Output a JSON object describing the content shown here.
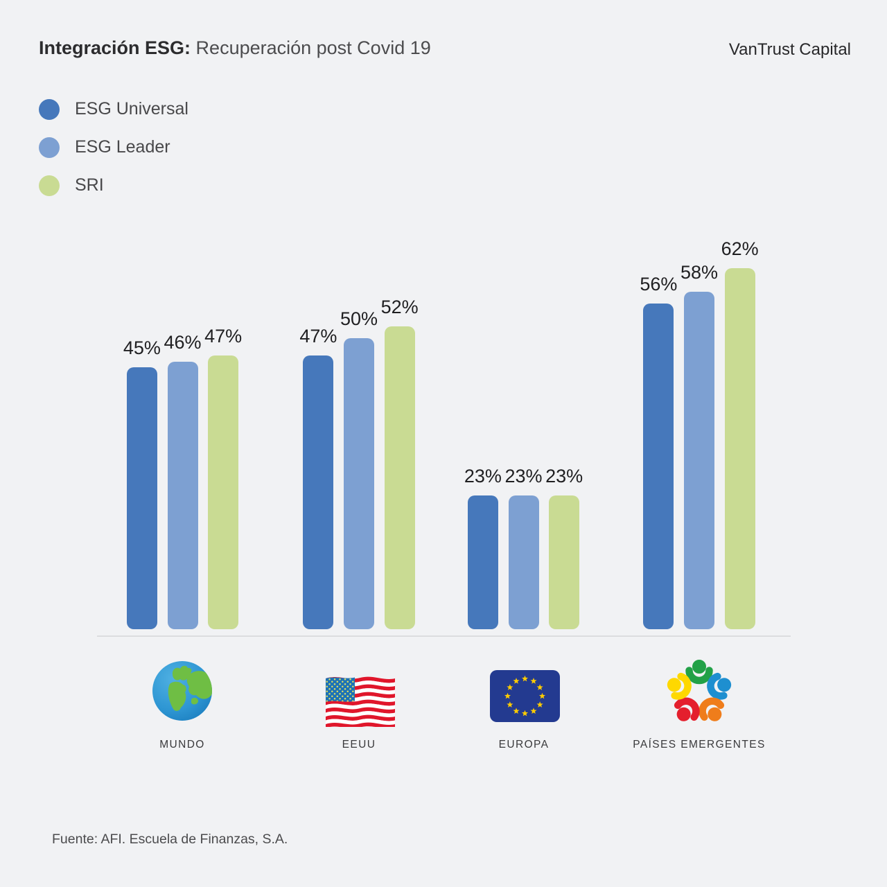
{
  "header": {
    "title_bold": "Integración ESG:",
    "title_regular": " Recuperación post Covid 19",
    "brand": "VanTrust Capital"
  },
  "legend": [
    {
      "label": "ESG Universal",
      "color": "#4678bb"
    },
    {
      "label": "ESG Leader",
      "color": "#7da0d2"
    },
    {
      "label": "SRI",
      "color": "#c9db93"
    }
  ],
  "chart_data": {
    "type": "bar",
    "categories": [
      "MUNDO",
      "EEUU",
      "EUROPA",
      "PAÍSES EMERGENTES"
    ],
    "series": [
      {
        "name": "ESG Universal",
        "color": "#4678bb",
        "values": [
          45,
          47,
          23,
          56
        ]
      },
      {
        "name": "ESG Leader",
        "color": "#7da0d2",
        "values": [
          46,
          50,
          23,
          58
        ]
      },
      {
        "name": "SRI",
        "color": "#c9db93",
        "values": [
          47,
          52,
          23,
          62
        ]
      }
    ],
    "value_suffix": "%",
    "grid": false,
    "legend_position": "top-left"
  },
  "icons": {
    "globe": "globe",
    "us_flag": "us-flag",
    "eu_flag": "eu-flag",
    "emerging": "emerging-people-circle"
  },
  "footer": {
    "source": "Fuente: AFI. Escuela de Finanzas, S.A."
  }
}
